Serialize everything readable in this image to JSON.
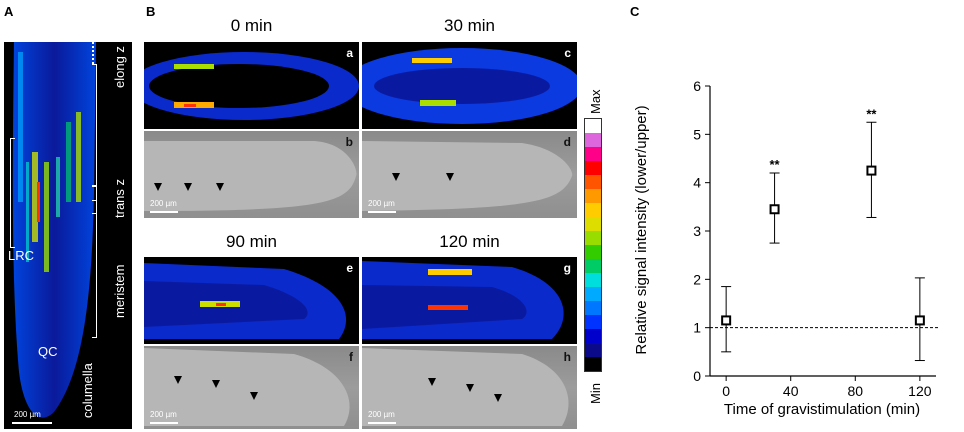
{
  "panel_labels": {
    "a": "A",
    "b": "B",
    "c": "C"
  },
  "panel_a": {
    "zones": [
      "elong z",
      "trans z",
      "meristem",
      "columella"
    ],
    "lrc": "LRC",
    "qc": "QC",
    "scale": "200 µm"
  },
  "panel_b": {
    "times": [
      "0 min",
      "30 min",
      "90 min",
      "120 min"
    ],
    "sub_labels": [
      "a",
      "b",
      "c",
      "d",
      "e",
      "f",
      "g",
      "h"
    ],
    "scale": "200 µm",
    "colorbar": {
      "max": "Max",
      "min": "Min",
      "colors": [
        "#000000",
        "#0a0a8a",
        "#0000cc",
        "#0033ff",
        "#0077ff",
        "#00aaff",
        "#00dddd",
        "#00cc66",
        "#33cc00",
        "#99dd00",
        "#dddd00",
        "#ffcc00",
        "#ff9900",
        "#ff5500",
        "#ff0000",
        "#ff0088",
        "#dd66dd",
        "#ffffff"
      ]
    }
  },
  "chart_data": {
    "type": "scatter",
    "x": [
      0,
      30,
      90,
      120
    ],
    "y": [
      1.15,
      3.45,
      4.25,
      1.15
    ],
    "yerr_low": [
      0.5,
      2.75,
      3.28,
      0.32
    ],
    "yerr_high": [
      1.85,
      4.2,
      5.25,
      2.03
    ],
    "significance": [
      "",
      "**",
      "**",
      ""
    ],
    "xlabel": "Time of gravistimulation (min)",
    "ylabel": "Relative signal intensity (lower/upper)",
    "xlim": [
      -10,
      130
    ],
    "ylim": [
      0,
      6
    ],
    "xticks": [
      0,
      40,
      80,
      120
    ],
    "yticks": [
      0,
      1,
      2,
      3,
      4,
      5,
      6
    ],
    "reference_line": 1
  }
}
